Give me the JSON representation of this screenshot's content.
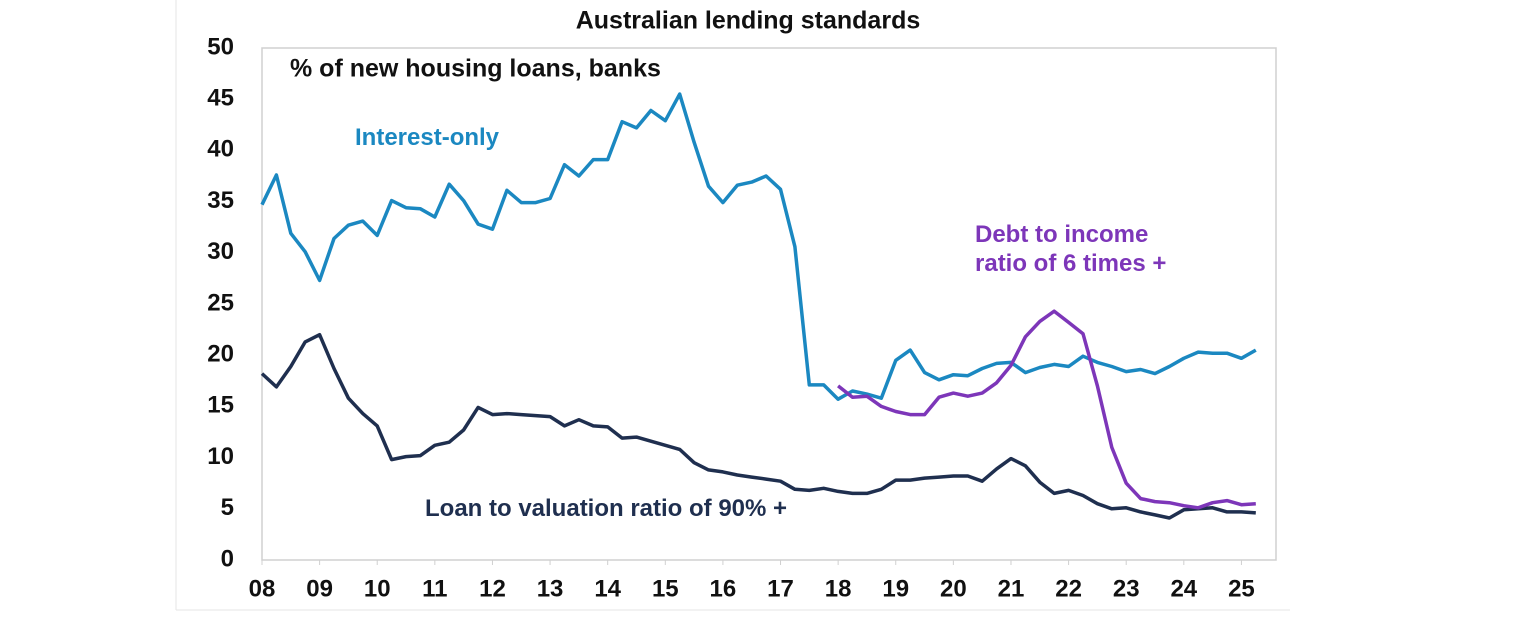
{
  "chart_data": {
    "type": "line",
    "title": "Australian lending standards",
    "subtitle": "% of new housing loans, banks",
    "x": [
      2008,
      2008.25,
      2008.5,
      2008.75,
      2009,
      2009.25,
      2009.5,
      2009.75,
      2010,
      2010.25,
      2010.5,
      2010.75,
      2011,
      2011.25,
      2011.5,
      2011.75,
      2012,
      2012.25,
      2012.5,
      2012.75,
      2013,
      2013.25,
      2013.5,
      2013.75,
      2014,
      2014.25,
      2014.5,
      2014.75,
      2015,
      2015.25,
      2015.5,
      2015.75,
      2016,
      2016.25,
      2016.5,
      2016.75,
      2017,
      2017.25,
      2017.5,
      2017.75,
      2018,
      2018.25,
      2018.5,
      2018.75,
      2019,
      2019.25,
      2019.5,
      2019.75,
      2020,
      2020.25,
      2020.5,
      2020.75,
      2021,
      2021.25,
      2021.5,
      2021.75,
      2022,
      2022.25,
      2022.5,
      2022.75,
      2023,
      2023.25,
      2023.5,
      2023.75,
      2024,
      2024.25,
      2024.5,
      2024.75,
      2025,
      2025.25
    ],
    "series": [
      {
        "name": "Interest-only",
        "color": "#1b88c1",
        "values": [
          34.7,
          37.6,
          31.9,
          30.1,
          27.3,
          31.4,
          32.7,
          33.1,
          31.7,
          35.1,
          34.4,
          34.3,
          33.5,
          36.7,
          35.1,
          32.8,
          32.3,
          36.1,
          34.9,
          34.9,
          35.3,
          38.6,
          37.5,
          39.1,
          39.1,
          42.8,
          42.2,
          43.9,
          42.9,
          45.5,
          40.8,
          36.5,
          34.9,
          36.6,
          36.9,
          37.5,
          36.2,
          30.6,
          17.1,
          17.1,
          15.7,
          16.5,
          16.2,
          15.8,
          19.5,
          20.5,
          18.3,
          17.6,
          18.1,
          18.0,
          18.7,
          19.2,
          19.3,
          18.3,
          18.8,
          19.1,
          18.9,
          19.9,
          19.3,
          18.9,
          18.4,
          18.6,
          18.2,
          18.9,
          19.7,
          20.3,
          20.2,
          20.2,
          19.7,
          20.5
        ]
      },
      {
        "name": "Loan to valuation ratio of 90% +",
        "color": "#1f2f4f",
        "values": [
          18.2,
          16.9,
          18.9,
          21.3,
          22.0,
          18.7,
          15.8,
          14.3,
          13.1,
          9.8,
          10.1,
          10.2,
          11.2,
          11.5,
          12.7,
          14.9,
          14.2,
          14.3,
          14.2,
          14.1,
          14.0,
          13.1,
          13.7,
          13.1,
          13.0,
          11.9,
          12.0,
          11.6,
          11.2,
          10.8,
          9.5,
          8.8,
          8.6,
          8.3,
          8.1,
          7.9,
          7.7,
          6.9,
          6.8,
          7.0,
          6.7,
          6.5,
          6.5,
          6.9,
          7.8,
          7.8,
          8.0,
          8.1,
          8.2,
          8.2,
          7.7,
          8.9,
          9.9,
          9.2,
          7.6,
          6.5,
          6.8,
          6.3,
          5.5,
          5.0,
          5.1,
          4.7,
          4.4,
          4.1,
          4.9,
          5.0,
          5.1,
          4.7,
          4.7,
          4.6
        ]
      },
      {
        "name": "Debt to income ratio of 6 times +",
        "color": "#7d36b9",
        "values": [
          null,
          null,
          null,
          null,
          null,
          null,
          null,
          null,
          null,
          null,
          null,
          null,
          null,
          null,
          null,
          null,
          null,
          null,
          null,
          null,
          null,
          null,
          null,
          null,
          null,
          null,
          null,
          null,
          null,
          null,
          null,
          null,
          null,
          null,
          null,
          null,
          null,
          null,
          null,
          null,
          17.0,
          15.9,
          16.0,
          15.0,
          14.5,
          14.2,
          14.2,
          15.9,
          16.3,
          16.0,
          16.3,
          17.3,
          19.0,
          21.8,
          23.3,
          24.3,
          23.2,
          22.1,
          17.0,
          11.0,
          7.5,
          6.0,
          5.7,
          5.6,
          5.3,
          5.1,
          5.6,
          5.8,
          5.4,
          5.5
        ]
      }
    ],
    "xlim": [
      2008,
      2025.6
    ],
    "xticks": [
      {
        "value": 2008,
        "label": "08"
      },
      {
        "value": 2009,
        "label": "09"
      },
      {
        "value": 2010,
        "label": "10"
      },
      {
        "value": 2011,
        "label": "11"
      },
      {
        "value": 2012,
        "label": "12"
      },
      {
        "value": 2013,
        "label": "13"
      },
      {
        "value": 2014,
        "label": "14"
      },
      {
        "value": 2015,
        "label": "15"
      },
      {
        "value": 2016,
        "label": "16"
      },
      {
        "value": 2017,
        "label": "17"
      },
      {
        "value": 2018,
        "label": "18"
      },
      {
        "value": 2019,
        "label": "19"
      },
      {
        "value": 2020,
        "label": "20"
      },
      {
        "value": 2021,
        "label": "21"
      },
      {
        "value": 2022,
        "label": "22"
      },
      {
        "value": 2023,
        "label": "23"
      },
      {
        "value": 2024,
        "label": "24"
      },
      {
        "value": 2025,
        "label": "25"
      }
    ],
    "ylim": [
      0,
      50
    ],
    "yticks": [
      0,
      5,
      10,
      15,
      20,
      25,
      30,
      35,
      40,
      45,
      50
    ],
    "grid": false
  }
}
